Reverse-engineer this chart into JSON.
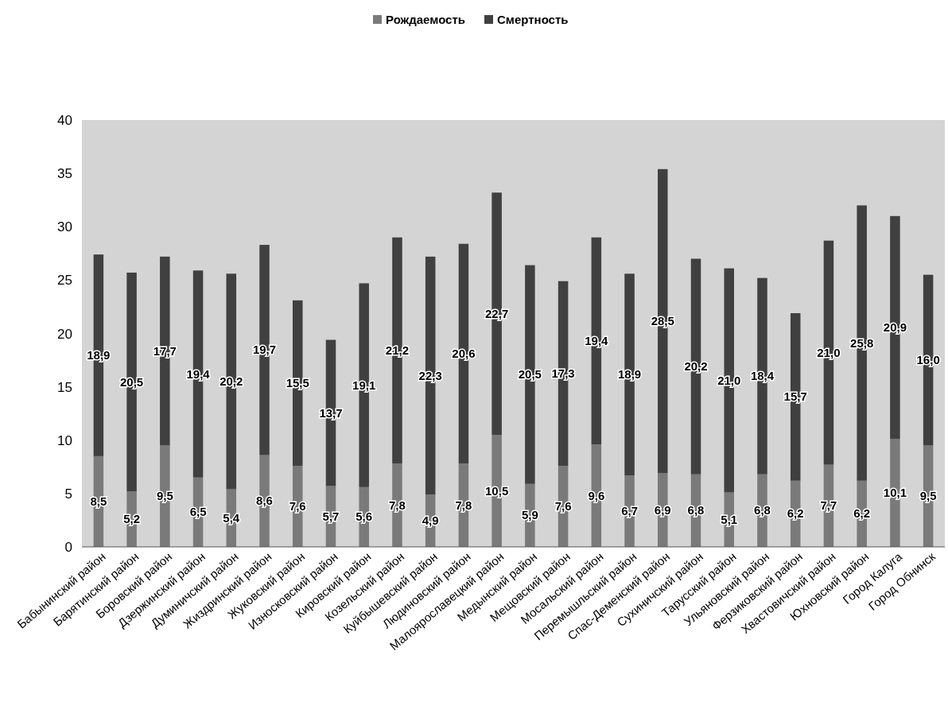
{
  "chart_data": {
    "type": "bar",
    "stacked": true,
    "legend": "top",
    "categories": [
      "Бабынинский район",
      "Барятинский район",
      "Боровский район",
      "Дзержинский район",
      "Думиничский район",
      "Жиздринский район",
      "Жуковский район",
      "Износковский район",
      "Кировский район",
      "Козельский район",
      "Куйбышевский район",
      "Людиновский район",
      "Малоярославецкий район",
      "Медынский район",
      "Мещовский район",
      "Мосальский район",
      "Перемышльский район",
      "Спас-Деменский район",
      "Сухиничский район",
      "Тарусский район",
      "Ульяновский район",
      "Ферзиковский район",
      "Хвастовичский район",
      "Юхновский район",
      "Город Калуга",
      "Город Обнинск"
    ],
    "series": [
      {
        "name": "Рождаемость",
        "color": "#7a7a7a",
        "values": [
          8.5,
          5.2,
          9.5,
          6.5,
          5.4,
          8.6,
          7.6,
          5.7,
          5.6,
          7.8,
          4.9,
          7.8,
          10.5,
          5.9,
          7.6,
          9.6,
          6.7,
          6.9,
          6.8,
          5.1,
          6.8,
          6.2,
          7.7,
          6.2,
          10.1,
          9.5
        ],
        "value_labels": [
          "8,5",
          "5,2",
          "9,5",
          "6,5",
          "5,4",
          "8,6",
          "7,6",
          "5,7",
          "5,6",
          "7,8",
          "4,9",
          "7,8",
          "10,5",
          "5,9",
          "7,6",
          "9,6",
          "6,7",
          "6,9",
          "6,8",
          "5,1",
          "6,8",
          "6,2",
          "7,7",
          "6,2",
          "10,1",
          "9,5"
        ]
      },
      {
        "name": "Смертность",
        "color": "#404040",
        "values": [
          18.9,
          20.5,
          17.7,
          19.4,
          20.2,
          19.7,
          15.5,
          13.7,
          19.1,
          21.2,
          22.3,
          20.6,
          22.7,
          20.5,
          17.3,
          19.4,
          18.9,
          28.5,
          20.2,
          21.0,
          18.4,
          15.7,
          21.0,
          25.8,
          20.9,
          16.0
        ],
        "value_labels": [
          "18,9",
          "20,5",
          "17,7",
          "19,4",
          "20,2",
          "19,7",
          "15,5",
          "13,7",
          "19,1",
          "21,2",
          "22,3",
          "20,6",
          "22,7",
          "20,5",
          "17,3",
          "19,4",
          "18,9",
          "28,5",
          "20,2",
          "21,0",
          "18,4",
          "15,7",
          "21,0",
          "25,8",
          "20,9",
          "16,0"
        ]
      }
    ],
    "ylim": [
      0,
      40
    ],
    "yticks": [
      0,
      5,
      10,
      15,
      20,
      25,
      30,
      35,
      40
    ]
  }
}
